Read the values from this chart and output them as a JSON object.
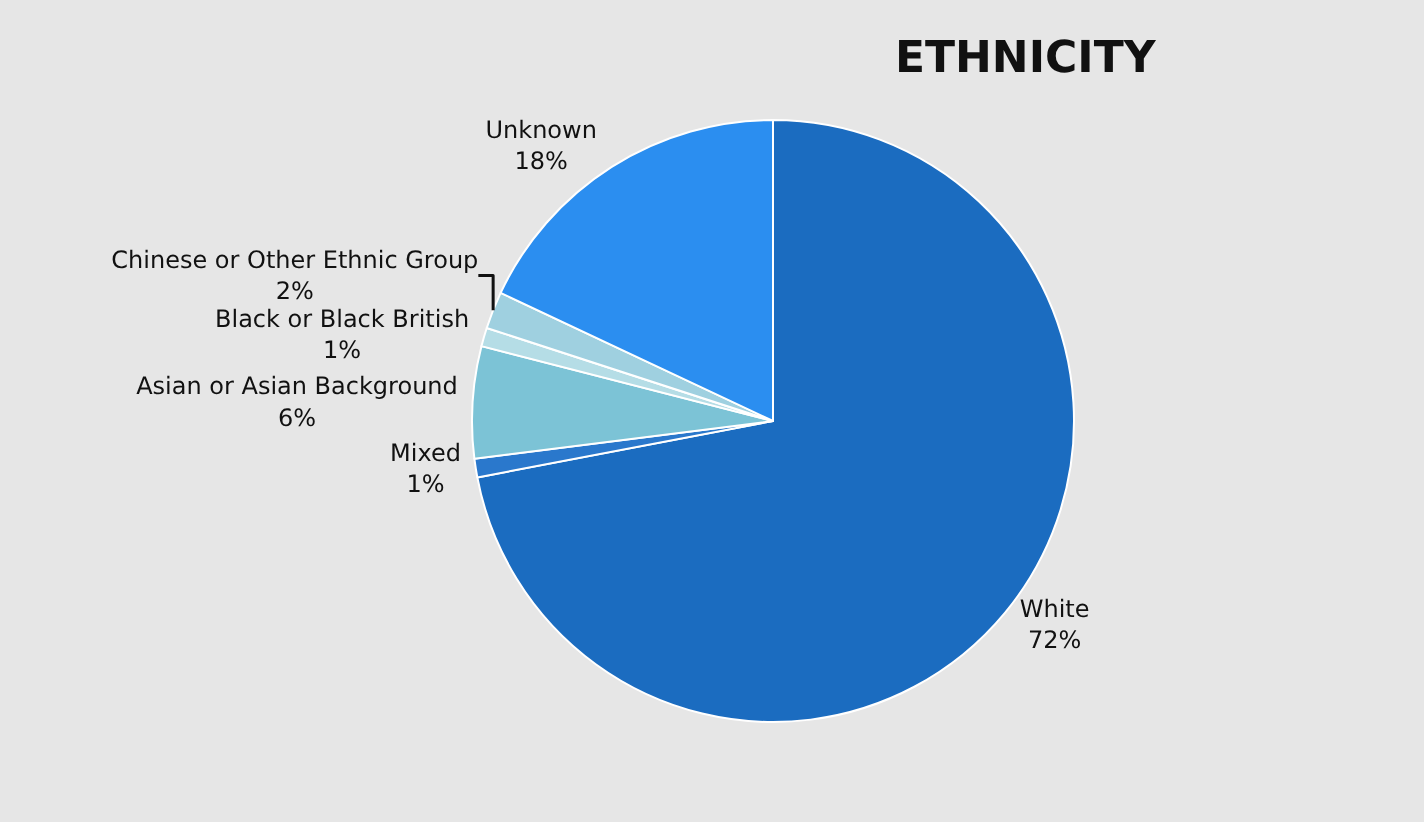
{
  "chart_data": {
    "type": "pie",
    "title": "ETHNICITY",
    "categories": [
      "White",
      "Mixed",
      "Asian or Asian Background",
      "Black or Black British",
      "Chinese or Other Ethnic Group",
      "Unknown"
    ],
    "values": [
      72,
      1,
      6,
      1,
      2,
      18
    ],
    "value_labels": [
      "72%",
      "1%",
      "6%",
      "1%",
      "2%",
      "18%"
    ],
    "colors": [
      "#1b6cc0",
      "#2a78cc",
      "#7cc3d6",
      "#b5dde6",
      "#9fd0e0",
      "#2b8ef0"
    ],
    "legend": false
  }
}
